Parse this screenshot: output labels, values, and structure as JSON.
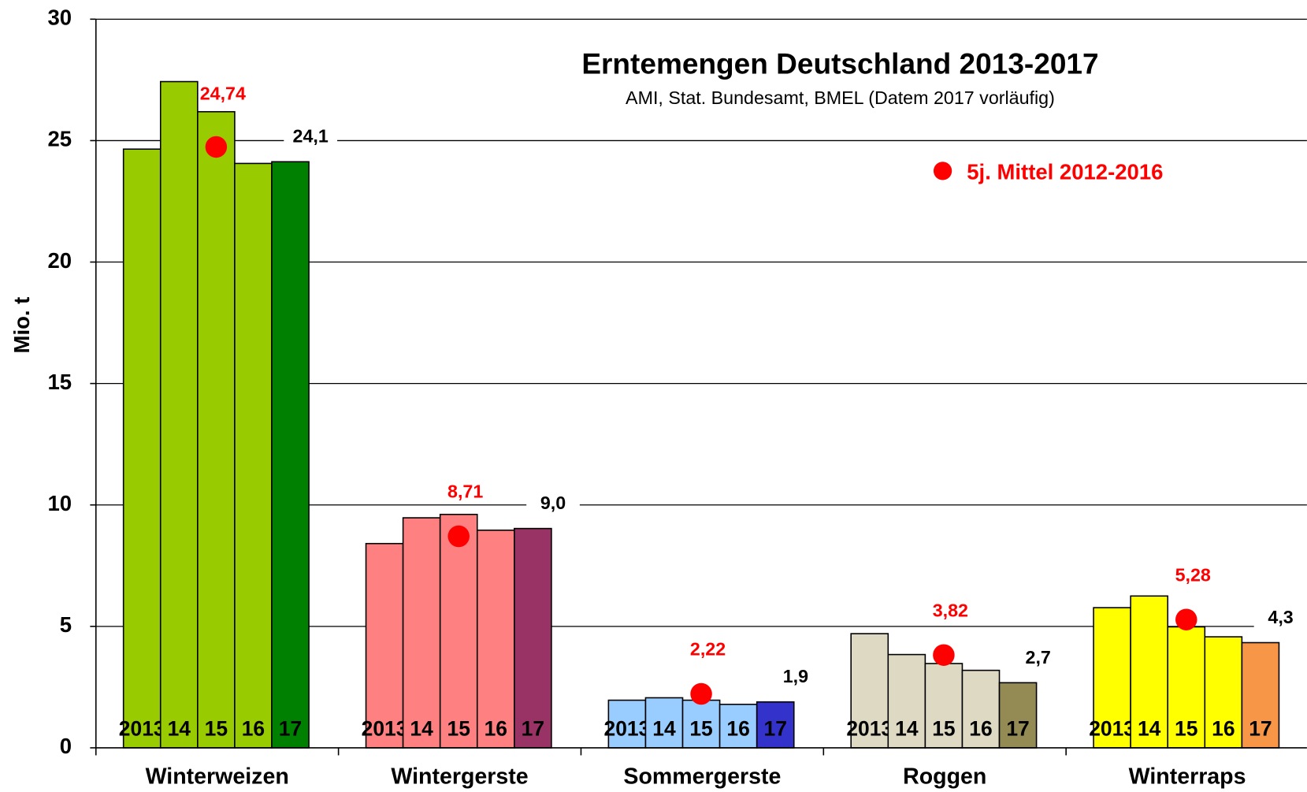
{
  "chart_data": {
    "type": "bar",
    "title": "Erntemengen Deutschland 2013-2017",
    "subtitle": "AMI, Stat. Bundesamt, BMEL (Datem 2017 vorläufig)",
    "y_label": "Mio. t",
    "categories": [
      "Winterweizen",
      "Wintergerste",
      "Sommergerste",
      "Roggen",
      "Winterraps"
    ],
    "series": [
      {
        "name": "2013",
        "colors": [
          "#99cc00",
          "#ff8080",
          "#99ccff",
          "#ddd9c3",
          "#ffff00"
        ],
        "values": [
          24.65,
          8.41,
          1.96,
          4.7,
          5.77
        ]
      },
      {
        "name": "14",
        "colors": [
          "#99cc00",
          "#ff8080",
          "#99ccff",
          "#ddd9c3",
          "#ffff00"
        ],
        "values": [
          27.43,
          9.47,
          2.06,
          3.84,
          6.25
        ]
      },
      {
        "name": "15",
        "colors": [
          "#99cc00",
          "#ff8080",
          "#99ccff",
          "#ddd9c3",
          "#ffff00"
        ],
        "values": [
          26.19,
          9.61,
          1.96,
          3.47,
          4.98
        ]
      },
      {
        "name": "16",
        "colors": [
          "#99cc00",
          "#ff8080",
          "#99ccff",
          "#ddd9c3",
          "#ffff00"
        ],
        "values": [
          24.06,
          8.96,
          1.79,
          3.19,
          4.57
        ]
      },
      {
        "name": "17",
        "colors": [
          "#008000",
          "#993366",
          "#3333cc",
          "#948a54",
          "#f79646"
        ],
        "values": [
          24.13,
          9.03,
          1.89,
          2.68,
          4.33
        ],
        "value_labels": [
          "24,1",
          "9,0",
          "1,9",
          "2,7",
          "4,3"
        ]
      }
    ],
    "mean": {
      "name": "5j. Mittel 2012-2016",
      "color": "#ff0000",
      "values": [
        24.74,
        8.71,
        2.22,
        3.82,
        5.28
      ],
      "value_labels": [
        "24,74",
        "8,71",
        "2,22",
        "3,82",
        "5,28"
      ]
    },
    "ylim": [
      0,
      30
    ],
    "yticks": [
      0,
      5,
      10,
      15,
      20,
      25,
      30
    ],
    "grid": true
  }
}
